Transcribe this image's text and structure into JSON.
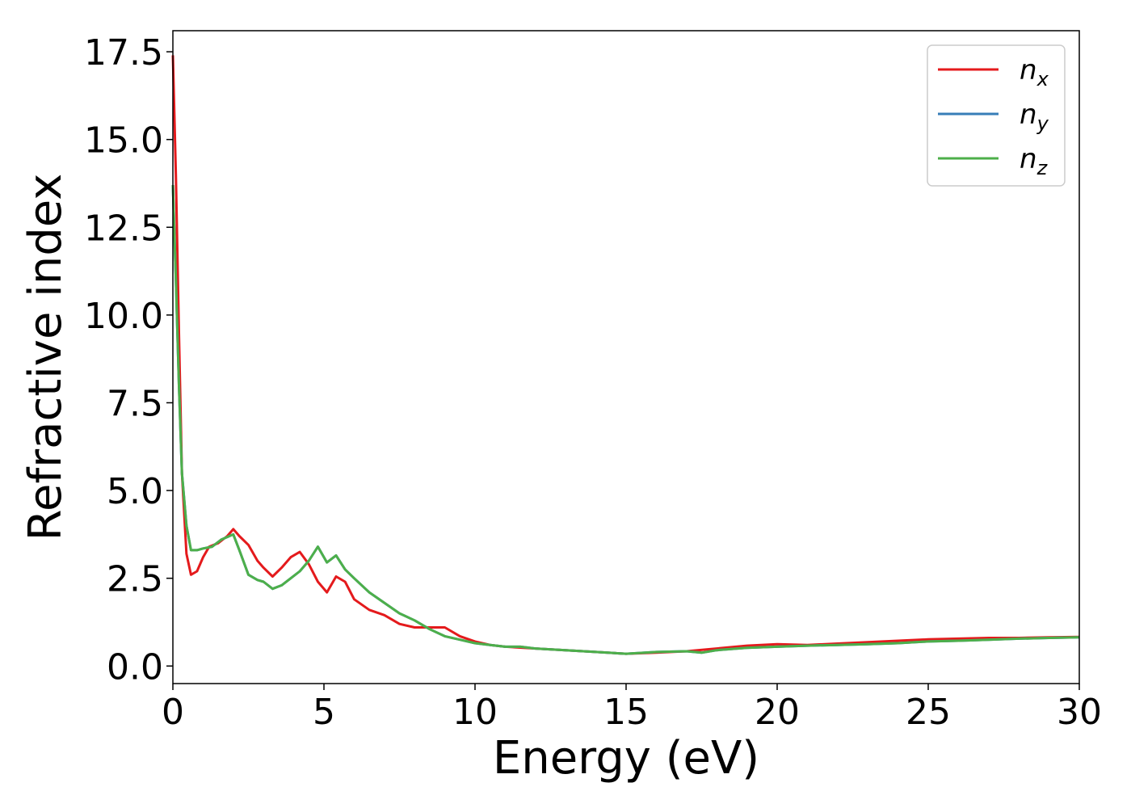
{
  "chart_data": {
    "type": "line",
    "title": "",
    "xlabel": "Energy (eV)",
    "ylabel": "Refractive index",
    "xlim": [
      0,
      30
    ],
    "ylim": [
      -0.5,
      18.1
    ],
    "xticks": [
      0,
      5,
      10,
      15,
      20,
      25,
      30
    ],
    "xtick_labels": [
      "0",
      "5",
      "10",
      "15",
      "20",
      "25",
      "30"
    ],
    "yticks": [
      0,
      2.5,
      5,
      7.5,
      10,
      12.5,
      15,
      17.5
    ],
    "ytick_labels": [
      "0.0",
      "2.5",
      "5.0",
      "7.5",
      "10.0",
      "12.5",
      "15.0",
      "17.5"
    ],
    "grid": false,
    "legend": {
      "position": "top-right",
      "entries": [
        {
          "base": "n",
          "sub": "x",
          "color": "#e41a1c"
        },
        {
          "base": "n",
          "sub": "y",
          "color": "#377eb8"
        },
        {
          "base": "n",
          "sub": "z",
          "color": "#4daf4a"
        }
      ]
    },
    "series": [
      {
        "name": "n_x",
        "color": "#e41a1c",
        "x": [
          0,
          0.1,
          0.2,
          0.3,
          0.45,
          0.6,
          0.8,
          1.0,
          1.2,
          1.5,
          1.8,
          2.0,
          2.2,
          2.5,
          2.8,
          3.0,
          3.3,
          3.6,
          3.9,
          4.2,
          4.5,
          4.8,
          5.1,
          5.4,
          5.7,
          6.0,
          6.5,
          7.0,
          7.5,
          8.0,
          8.5,
          9.0,
          9.5,
          10,
          10.5,
          11,
          12,
          13,
          14,
          15,
          16,
          17,
          18,
          19,
          20,
          21,
          22,
          23,
          24,
          25,
          26,
          27,
          28,
          29,
          30
        ],
        "y": [
          17.4,
          14.0,
          9.5,
          5.5,
          3.2,
          2.6,
          2.7,
          3.1,
          3.4,
          3.5,
          3.7,
          3.9,
          3.7,
          3.45,
          3.0,
          2.8,
          2.55,
          2.8,
          3.1,
          3.25,
          2.9,
          2.4,
          2.1,
          2.55,
          2.4,
          1.9,
          1.6,
          1.45,
          1.2,
          1.1,
          1.1,
          1.1,
          0.85,
          0.7,
          0.6,
          0.55,
          0.5,
          0.45,
          0.4,
          0.35,
          0.38,
          0.42,
          0.5,
          0.58,
          0.62,
          0.6,
          0.64,
          0.68,
          0.72,
          0.76,
          0.78,
          0.8,
          0.8,
          0.82,
          0.83
        ]
      },
      {
        "name": "n_y",
        "color": "#377eb8",
        "x": [
          0,
          0.1,
          0.2,
          0.3,
          0.45,
          0.6,
          0.8,
          1.0,
          1.3,
          1.6,
          2.0,
          2.2,
          2.5,
          2.8,
          3.0,
          3.3,
          3.6,
          3.9,
          4.2,
          4.5,
          4.8,
          5.1,
          5.4,
          5.7,
          6.0,
          6.5,
          7.0,
          7.5,
          8.0,
          8.5,
          9.0,
          9.5,
          10,
          10.5,
          11,
          11.5,
          12,
          13,
          14,
          15,
          16,
          17,
          17.5,
          18,
          19,
          20,
          21,
          22,
          23,
          24,
          25,
          26,
          27,
          28,
          29,
          30
        ],
        "y": [
          13.7,
          11.0,
          8.0,
          5.5,
          4.0,
          3.3,
          3.3,
          3.35,
          3.4,
          3.6,
          3.75,
          3.3,
          2.6,
          2.45,
          2.4,
          2.2,
          2.3,
          2.5,
          2.7,
          3.0,
          3.4,
          2.95,
          3.15,
          2.75,
          2.5,
          2.1,
          1.8,
          1.5,
          1.3,
          1.05,
          0.85,
          0.75,
          0.65,
          0.6,
          0.55,
          0.55,
          0.5,
          0.45,
          0.4,
          0.35,
          0.4,
          0.42,
          0.38,
          0.45,
          0.52,
          0.55,
          0.58,
          0.6,
          0.62,
          0.65,
          0.7,
          0.72,
          0.75,
          0.78,
          0.8,
          0.82
        ]
      },
      {
        "name": "n_z",
        "color": "#4daf4a",
        "x": [
          0,
          0.1,
          0.2,
          0.3,
          0.45,
          0.6,
          0.8,
          1.0,
          1.3,
          1.6,
          2.0,
          2.2,
          2.5,
          2.8,
          3.0,
          3.3,
          3.6,
          3.9,
          4.2,
          4.5,
          4.8,
          5.1,
          5.4,
          5.7,
          6.0,
          6.5,
          7.0,
          7.5,
          8.0,
          8.5,
          9.0,
          9.5,
          10,
          10.5,
          11,
          11.5,
          12,
          13,
          14,
          15,
          16,
          17,
          17.5,
          18,
          19,
          20,
          21,
          22,
          23,
          24,
          25,
          26,
          27,
          28,
          29,
          30
        ],
        "y": [
          13.7,
          11.0,
          8.0,
          5.5,
          4.0,
          3.3,
          3.3,
          3.35,
          3.4,
          3.6,
          3.75,
          3.3,
          2.6,
          2.45,
          2.4,
          2.2,
          2.3,
          2.5,
          2.7,
          3.0,
          3.4,
          2.95,
          3.15,
          2.75,
          2.5,
          2.1,
          1.8,
          1.5,
          1.3,
          1.05,
          0.85,
          0.75,
          0.65,
          0.6,
          0.55,
          0.55,
          0.5,
          0.45,
          0.4,
          0.35,
          0.4,
          0.42,
          0.38,
          0.45,
          0.52,
          0.55,
          0.58,
          0.6,
          0.62,
          0.65,
          0.7,
          0.72,
          0.75,
          0.78,
          0.8,
          0.82
        ]
      }
    ]
  }
}
